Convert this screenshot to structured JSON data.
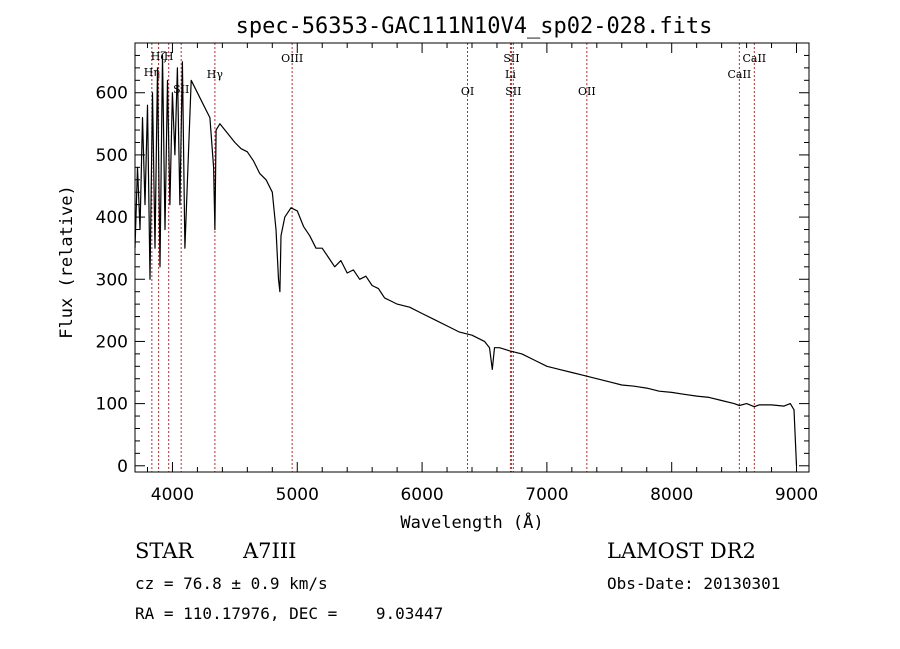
{
  "chart_data": {
    "type": "line",
    "title": "spec-56353-GAC111N10V4_sp02-028.fits",
    "xlabel": "Wavelength (Å)",
    "ylabel": "Flux (relative)",
    "xlim": [
      3700,
      9100
    ],
    "ylim": [
      -10,
      680
    ],
    "xticks": [
      4000,
      5000,
      6000,
      7000,
      8000,
      9000
    ],
    "yticks": [
      0,
      100,
      200,
      300,
      400,
      500,
      600
    ],
    "grid": false,
    "line_color": "#000000",
    "marker_color": "#b03030",
    "series": [
      {
        "x": [
          3700,
          3720,
          3740,
          3760,
          3780,
          3800,
          3820,
          3840,
          3860,
          3880,
          3900,
          3920,
          3940,
          3960,
          3980,
          4000,
          4020,
          4040,
          4060,
          4080,
          4100,
          4150,
          4200,
          4250,
          4300,
          4330,
          4340,
          4350,
          4380,
          4420,
          4460,
          4500,
          4550,
          4600,
          4650,
          4700,
          4750,
          4800,
          4830,
          4850,
          4861,
          4870,
          4900,
          4950,
          5000,
          5050,
          5100,
          5150,
          5200,
          5250,
          5300,
          5350,
          5400,
          5450,
          5500,
          5550,
          5600,
          5650,
          5700,
          5750,
          5800,
          5900,
          6000,
          6100,
          6200,
          6300,
          6400,
          6500,
          6540,
          6563,
          6580,
          6620,
          6700,
          6800,
          6900,
          7000,
          7100,
          7200,
          7300,
          7400,
          7500,
          7600,
          7700,
          7800,
          7900,
          8000,
          8100,
          8200,
          8300,
          8400,
          8500,
          8542,
          8600,
          8662,
          8700,
          8800,
          8900,
          8950,
          8980,
          9000
        ],
        "y": [
          350,
          480,
          380,
          560,
          420,
          580,
          300,
          600,
          350,
          640,
          320,
          660,
          380,
          620,
          420,
          600,
          500,
          640,
          420,
          650,
          350,
          620,
          600,
          580,
          560,
          480,
          380,
          540,
          550,
          540,
          530,
          520,
          510,
          505,
          490,
          470,
          460,
          440,
          380,
          300,
          280,
          370,
          400,
          415,
          410,
          385,
          370,
          350,
          350,
          335,
          320,
          330,
          310,
          315,
          300,
          305,
          290,
          285,
          270,
          265,
          260,
          255,
          245,
          235,
          225,
          215,
          210,
          200,
          190,
          155,
          190,
          190,
          185,
          180,
          170,
          160,
          155,
          150,
          145,
          140,
          135,
          130,
          128,
          125,
          120,
          118,
          115,
          112,
          110,
          105,
          100,
          97,
          100,
          95,
          98,
          98,
          96,
          100,
          90,
          0
        ]
      }
    ],
    "lines": [
      {
        "label": "Hη",
        "x": 3835
      },
      {
        "label": "Hζ",
        "x": 3889
      },
      {
        "label": "H",
        "x": 3970
      },
      {
        "label": "SII",
        "x": 4070
      },
      {
        "label": "Hγ",
        "x": 4340
      },
      {
        "label": "OIII",
        "x": 4959
      },
      {
        "label": "OI",
        "x": 6364
      },
      {
        "label": "SII",
        "x": 6716
      },
      {
        "label": "Li",
        "x": 6708
      },
      {
        "label": "SII",
        "x": 6731
      },
      {
        "label": "OII",
        "x": 7320
      },
      {
        "label": "CaII",
        "x": 8542
      },
      {
        "label": "CaII",
        "x": 8662
      }
    ]
  },
  "info": {
    "object_class": "STAR",
    "subclass": "A7III",
    "survey": "LAMOST DR2",
    "cz": "cz = 76.8 ± 0.9 km/s",
    "obs_date": "Obs-Date: 20130301",
    "radec": "RA = 110.17976, DEC =    9.03447"
  }
}
